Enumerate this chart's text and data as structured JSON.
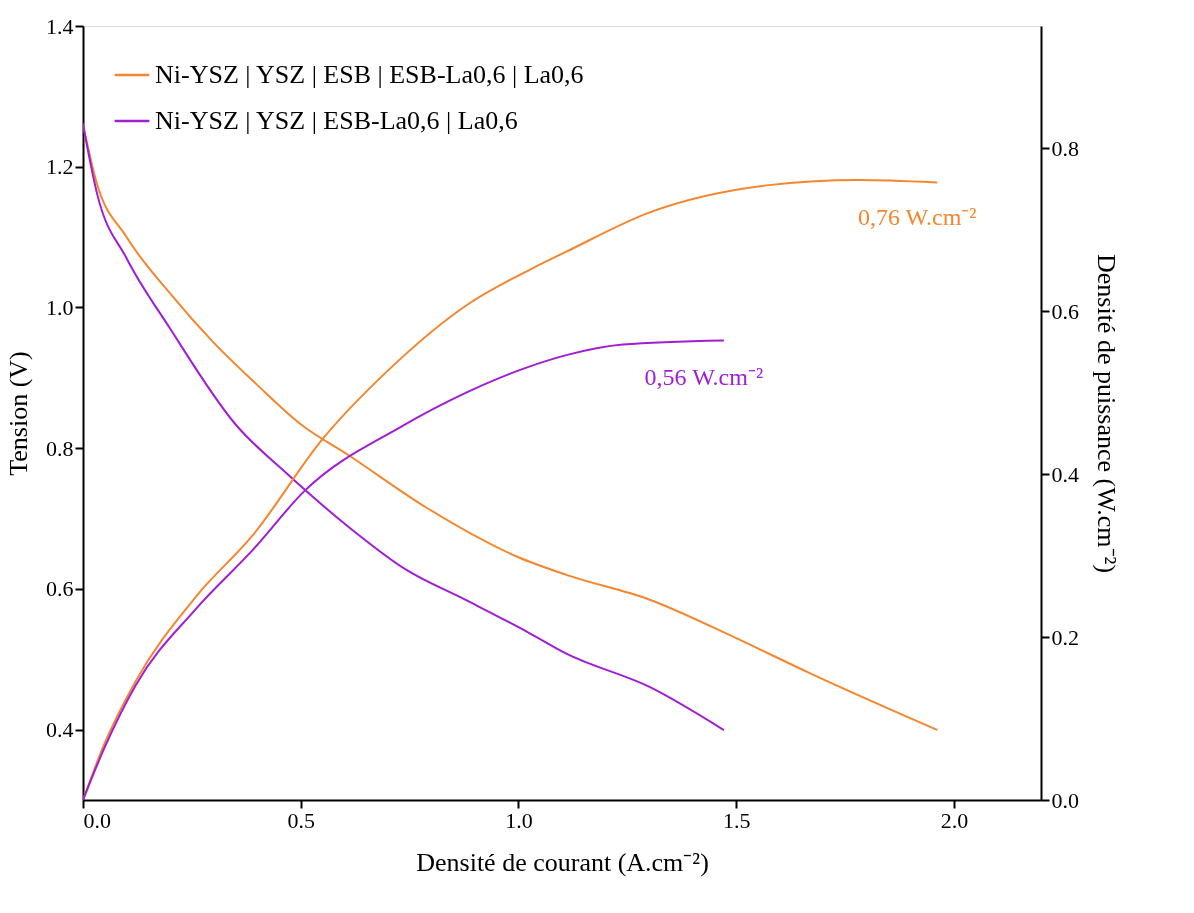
{
  "chart_data": {
    "type": "line",
    "xlabel": "Densité de courant (A.cm⁻²)",
    "ylabel": "Tension (V)",
    "y2label": "Densité de puissance (W.cm⁻²)",
    "xlim": [
      0,
      2.2
    ],
    "xticks": [
      {
        "value": 0,
        "label": "0.0"
      },
      0.5,
      {
        "value": 1,
        "label": "1.0"
      },
      1.5,
      {
        "value": 2,
        "label": "2.0"
      }
    ],
    "ylim": [
      0.3,
      1.4
    ],
    "yticks": [
      0.4,
      0.6,
      0.8,
      {
        "value": 1,
        "label": "1.0"
      },
      1.2,
      1.4
    ],
    "y2lim": [
      0,
      0.95
    ],
    "y2ticks": [
      {
        "value": 0,
        "label": "0.0"
      },
      0.2,
      0.4,
      0.6,
      0.8
    ],
    "legend": "top left",
    "grid": false,
    "line_style": "solid",
    "series": [
      {
        "name": "Ni-YSZ | YSZ | ESB | ESB-La0,6 | La0,6",
        "color": "#f5862e",
        "x": [
          0,
          0.03,
          0.1,
          0.2,
          0.3,
          0.4,
          0.5,
          0.61,
          0.79,
          1.0,
          1.11,
          1.3,
          1.5,
          1.67,
          1.96
        ],
        "values": [
          1.26,
          1.18,
          1.1,
          1.02,
          0.95,
          0.89,
          0.834,
          0.79,
          0.715,
          0.645,
          0.62,
          0.585,
          0.53,
          0.48,
          0.4
        ]
      },
      {
        "name": "Ni-YSZ |      YSZ      | ESB-La0,6 | La0,6",
        "color": "#a01ed4",
        "x": [
          0,
          0.033,
          0.1,
          0.2,
          0.35,
          0.47,
          0.61,
          0.74,
          0.88,
          1.02,
          1.11,
          1.3,
          1.47
        ],
        "values": [
          1.26,
          1.16,
          1.07,
          0.97,
          0.834,
          0.763,
          0.688,
          0.628,
          0.584,
          0.539,
          0.508,
          0.461,
          0.4
        ]
      },
      {
        "axis": "y2",
        "color": "#f5862e",
        "x": [
          0,
          0.05,
          0.12,
          0.26,
          0.39,
          0.55,
          0.7,
          0.88,
          1.03,
          1.11,
          1.3,
          1.58,
          1.78,
          1.96
        ],
        "values": [
          0,
          0.07,
          0.145,
          0.25,
          0.325,
          0.443,
          0.527,
          0.607,
          0.652,
          0.673,
          0.721,
          0.755,
          0.761,
          0.758
        ]
      },
      {
        "axis": "y2",
        "color": "#a01ed4",
        "x": [
          0,
          0.05,
          0.12,
          0.26,
          0.39,
          0.51,
          0.73,
          0.88,
          1.02,
          1.11,
          1.24,
          1.47
        ],
        "values": [
          0,
          0.065,
          0.14,
          0.235,
          0.307,
          0.38,
          0.458,
          0.5,
          0.531,
          0.546,
          0.559,
          0.564
        ]
      }
    ],
    "annotations": [
      "0,76 W.cm⁻²",
      "0,56 W.cm⁻²"
    ]
  }
}
